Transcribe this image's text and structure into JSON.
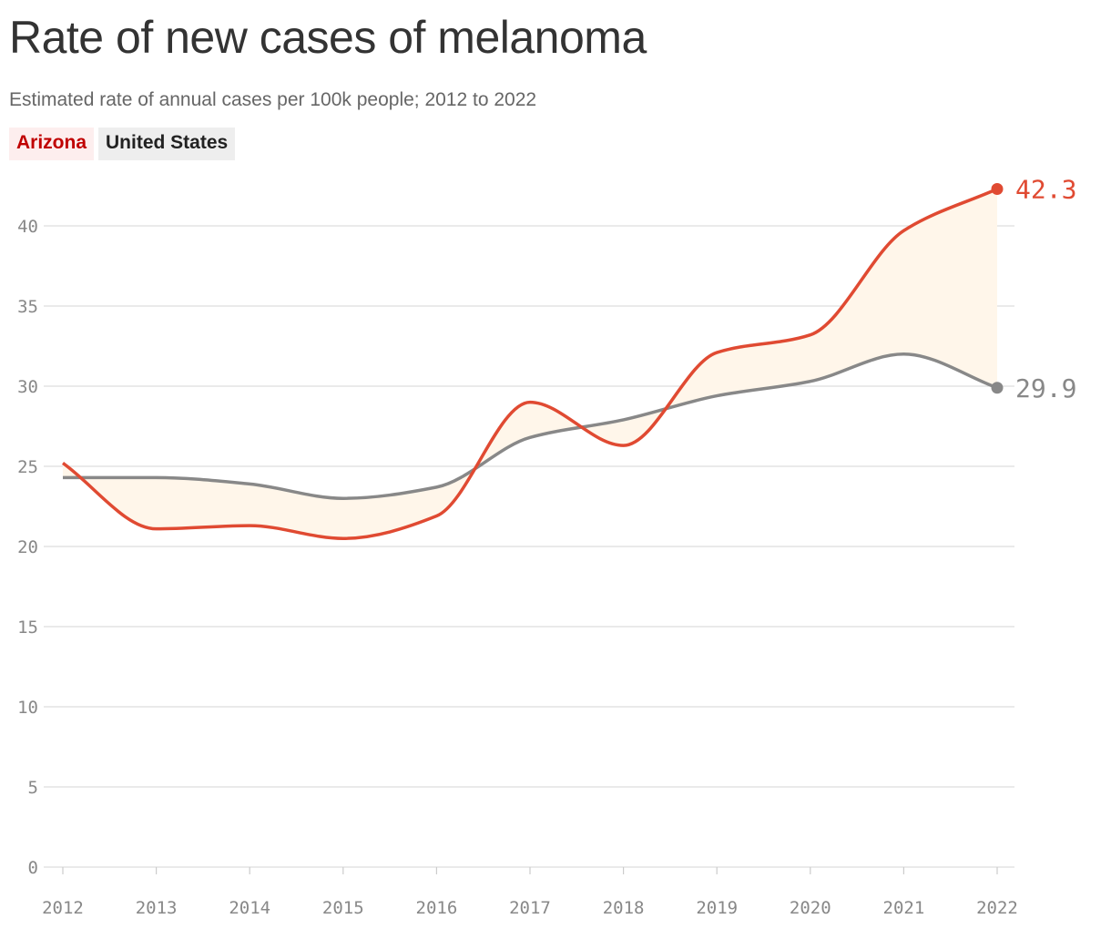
{
  "title": "Rate of new cases of melanoma",
  "subtitle": "Estimated rate of annual cases per 100k people; 2012 to 2022",
  "colors": {
    "arizona": "#e04a32",
    "us": "#888888",
    "fill": "#fff6ea",
    "grid": "#dddddd"
  },
  "chart_data": {
    "type": "line",
    "title": "Rate of new cases of melanoma",
    "subtitle": "Estimated rate of annual cases per 100k people; 2012 to 2022",
    "x": [
      2012,
      2013,
      2014,
      2015,
      2016,
      2017,
      2018,
      2019,
      2020,
      2021,
      2022
    ],
    "x_tick_labels": [
      "2012",
      "2013",
      "2014",
      "2015",
      "2016",
      "2017",
      "2018",
      "2019",
      "2020",
      "2021",
      "2022"
    ],
    "y_tick_labels": [
      "0",
      "5",
      "10",
      "15",
      "20",
      "25",
      "30",
      "35",
      "40"
    ],
    "y_ticks": [
      0,
      5,
      10,
      15,
      20,
      25,
      30,
      35,
      40
    ],
    "ylim": [
      0,
      42.3
    ],
    "grid": true,
    "legend": "top-left",
    "series": [
      {
        "name": "Arizona",
        "values": [
          25.2,
          21.1,
          21.3,
          20.5,
          21.9,
          29.0,
          26.3,
          32.1,
          33.2,
          39.7,
          42.3
        ],
        "end_label": "42.3"
      },
      {
        "name": "United States",
        "values": [
          24.3,
          24.3,
          23.9,
          23.0,
          23.7,
          26.8,
          27.9,
          29.4,
          30.3,
          32.0,
          29.9
        ],
        "end_label": "29.9"
      }
    ]
  }
}
